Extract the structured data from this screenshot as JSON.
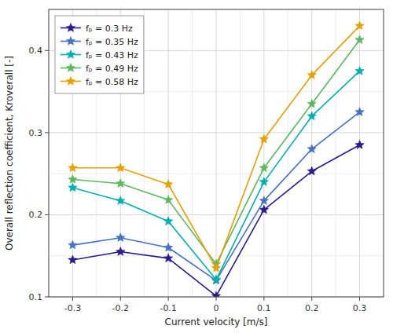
{
  "chart_data": {
    "type": "line",
    "xlabel": "Current velocity [m/s]",
    "ylabel": "Overall reflection coefficient, Kroverall [-]",
    "x": [
      -0.3,
      -0.2,
      -0.1,
      0.0,
      0.1,
      0.2,
      0.3
    ],
    "series": [
      {
        "name": "fₚ = 0.3 Hz",
        "color": "#2d1b8e",
        "values": [
          0.145,
          0.155,
          0.147,
          0.101,
          0.206,
          0.253,
          0.285
        ]
      },
      {
        "name": "fₚ = 0.35 Hz",
        "color": "#4472c4",
        "values": [
          0.163,
          0.172,
          0.16,
          0.12,
          0.217,
          0.28,
          0.325
        ]
      },
      {
        "name": "fₚ = 0.43 Hz",
        "color": "#00b0b0",
        "values": [
          0.233,
          0.217,
          0.192,
          0.121,
          0.24,
          0.32,
          0.375
        ]
      },
      {
        "name": "fₚ = 0.49 Hz",
        "color": "#5cb85c",
        "values": [
          0.243,
          0.238,
          0.218,
          0.14,
          0.257,
          0.335,
          0.413
        ]
      },
      {
        "name": "fₚ = 0.58 Hz",
        "color": "#e8a000",
        "values": [
          0.257,
          0.257,
          0.237,
          0.135,
          0.292,
          0.37,
          0.43
        ]
      }
    ],
    "xlim": [
      -0.35,
      0.35
    ],
    "ylim": [
      0.1,
      0.45
    ],
    "xticks": [
      -0.3,
      -0.2,
      -0.1,
      0,
      0.1,
      0.2,
      0.3
    ],
    "yticks": [
      0.1,
      0.2,
      0.3,
      0.4
    ],
    "grid": true,
    "legend": "upper left",
    "marker": "star"
  }
}
